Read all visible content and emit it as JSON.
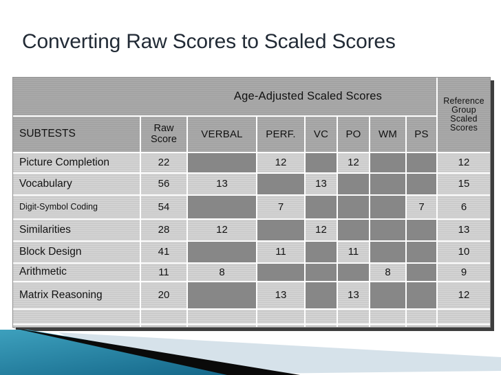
{
  "slide": {
    "title": "Converting Raw Scores to Scaled Scores"
  },
  "table": {
    "age_header": "Age-Adjusted Scaled Scores",
    "reference_header": "Reference Group Scaled Scores",
    "subtests_header": "SUBTESTS",
    "columns": [
      "Raw Score",
      "VERBAL",
      "PERF.",
      "VC",
      "PO",
      "WM",
      "PS"
    ],
    "rows": [
      {
        "subtest": "Picture Completion",
        "cells": [
          "22",
          null,
          "12",
          null,
          "12",
          null,
          null,
          "12"
        ]
      },
      {
        "subtest": "Vocabulary",
        "cells": [
          "56",
          "13",
          null,
          "13",
          null,
          null,
          null,
          "15"
        ]
      },
      {
        "subtest": "Digit-Symbol Coding",
        "small": true,
        "cells": [
          "54",
          null,
          "7",
          null,
          null,
          null,
          "7",
          "6"
        ]
      },
      {
        "subtest": "Similarities",
        "cells": [
          "28",
          "12",
          null,
          "12",
          null,
          null,
          null,
          "13"
        ]
      },
      {
        "subtest": "Block Design",
        "cells": [
          "41",
          null,
          "11",
          null,
          "11",
          null,
          null,
          "10"
        ]
      },
      {
        "subtest": "Arithmetic",
        "cells": [
          "11",
          "8",
          null,
          null,
          null,
          "8",
          null,
          "9"
        ]
      },
      {
        "subtest": "Matrix Reasoning",
        "cells": [
          "20",
          null,
          "13",
          null,
          "13",
          null,
          null,
          "12"
        ]
      },
      {
        "subtest": "",
        "cells": [
          "",
          "",
          "",
          "",
          "",
          "",
          "",
          ""
        ]
      },
      {
        "subtest": "",
        "cells": [
          "",
          "",
          "",
          "",
          "",
          "",
          "",
          ""
        ]
      }
    ]
  },
  "colors": {
    "title_color": "#222b36",
    "header_gray": "#a9a9a9",
    "cell_light": "#d3d3d3",
    "cell_blocked": "#878787",
    "gridline": "#ffffff",
    "shadow": "#3d3d3d",
    "teal_light": "#3da0bd",
    "teal_dark": "#15688a",
    "stripe_pale": "#d6e2ea",
    "stripe_black": "#0a0a0a"
  }
}
